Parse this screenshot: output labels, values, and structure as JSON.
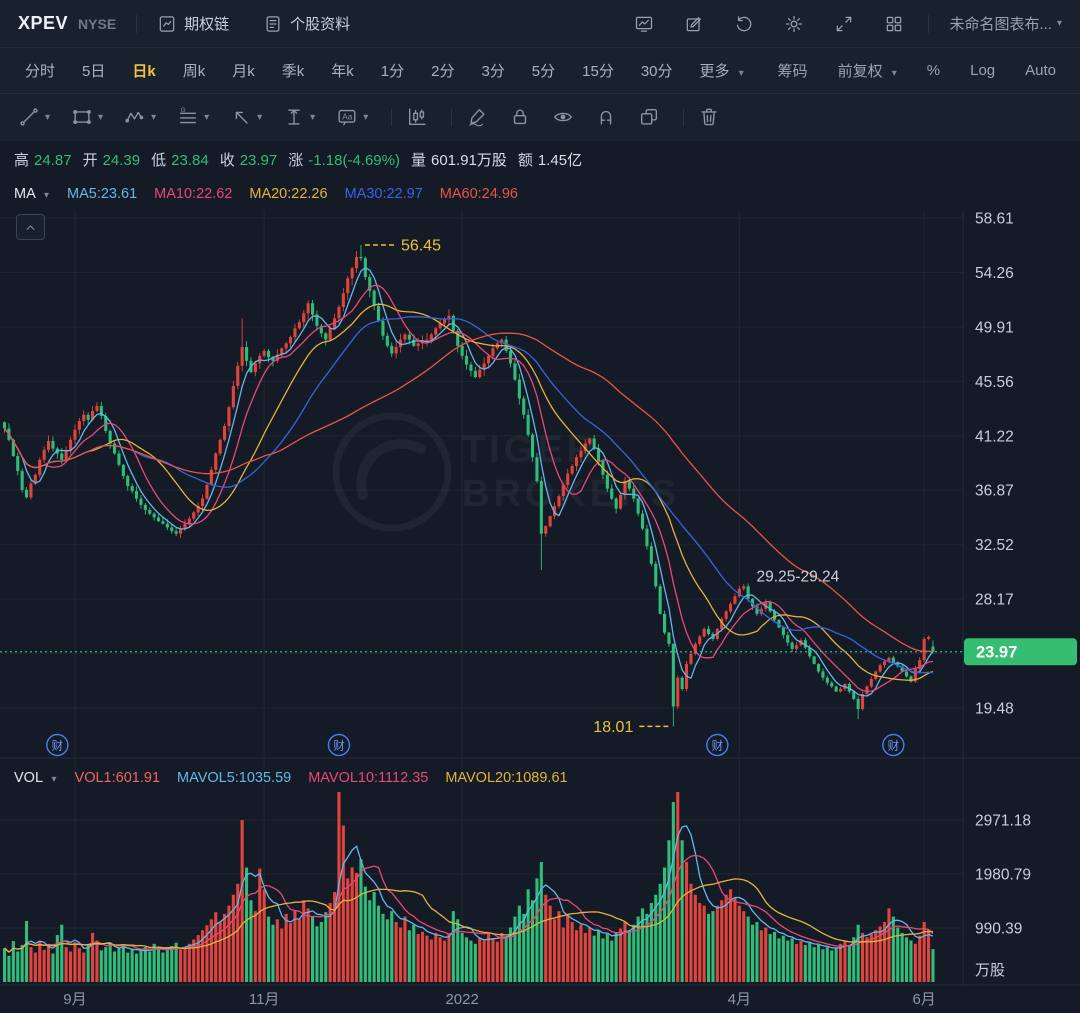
{
  "header": {
    "symbol": "XPEV",
    "exchange": "NYSE",
    "option_chain_label": "期权链",
    "stock_profile_label": "个股资料",
    "layout_name": "未命名图表布..."
  },
  "tabbar": {
    "timeframes": [
      "分时",
      "5日",
      "日k",
      "周k",
      "月k",
      "季k",
      "年k",
      "1分",
      "2分",
      "3分",
      "5分",
      "15分",
      "30分"
    ],
    "active_timeframe": "日k",
    "more_label": "更多",
    "right_controls": [
      {
        "label": "筹码",
        "caret": false
      },
      {
        "label": "前复权",
        "caret": true
      },
      {
        "label": "%",
        "caret": false
      },
      {
        "label": "Log",
        "caret": false
      },
      {
        "label": "Auto",
        "caret": false
      }
    ]
  },
  "icons": [
    "option-chain-icon",
    "document-icon",
    "monitor-chart-icon",
    "edit-icon",
    "undo-icon",
    "gear-icon",
    "expand-icon",
    "grid-layout-icon",
    "trend-line-icon",
    "rectangle-icon",
    "wave-icon",
    "gann-lines-icon",
    "arrow-icon",
    "measure-icon",
    "text-label-icon",
    "candle-chart-icon",
    "brush-icon",
    "lock-icon",
    "eye-icon",
    "magnet-icon",
    "overlap-squares-icon",
    "trash-icon",
    "chevron-up-icon"
  ],
  "stats": {
    "items": [
      {
        "label": "高",
        "value": "24.87",
        "cls": "green"
      },
      {
        "label": "开",
        "value": "24.39",
        "cls": "green"
      },
      {
        "label": "低",
        "value": "23.84",
        "cls": "green"
      },
      {
        "label": "收",
        "value": "23.97",
        "cls": "green"
      },
      {
        "label": "涨",
        "value": "-1.18(-4.69%)",
        "cls": "green"
      },
      {
        "label": "量",
        "value": "601.91万股",
        "cls": "white"
      },
      {
        "label": "额",
        "value": "1.45亿",
        "cls": "white"
      }
    ]
  },
  "ma_row": {
    "selector": "MA",
    "items": [
      {
        "label": "MA5:23.61",
        "color": "#62B8E8"
      },
      {
        "label": "MA10:22.62",
        "color": "#E84878"
      },
      {
        "label": "MA20:22.26",
        "color": "#E3B23C"
      },
      {
        "label": "MA30:22.97",
        "color": "#3564E0"
      },
      {
        "label": "MA60:24.96",
        "color": "#E85448"
      }
    ]
  },
  "vol_row": {
    "selector": "VOL",
    "items": [
      {
        "label": "VOL1:601.91",
        "color": "#F2655E"
      },
      {
        "label": "MAVOL5:1035.59",
        "color": "#62B8E8"
      },
      {
        "label": "MAVOL10:1112.35",
        "color": "#E84878"
      },
      {
        "label": "MAVOL20:1089.61",
        "color": "#E3B23C"
      }
    ]
  },
  "watermark": {
    "line1": "TIGER",
    "line2": "BROKERS"
  },
  "colors": {
    "up": "#E0443C",
    "down": "#2FBD7A",
    "badge": "#35BD72",
    "annotation_yellow": "#E8C23C",
    "axis_text": "#C6CEDA",
    "xaxis_text": "#8C96A6",
    "grid": "rgba(160,180,210,0.07)",
    "divider": "#242E3C",
    "earnings_blue": "#4A7DF0",
    "ma": [
      "#62B8E8",
      "#E84878",
      "#E3B23C",
      "#3564E0",
      "#E85448"
    ],
    "mavol": [
      "#62B8E8",
      "#E84878",
      "#E3B23C"
    ]
  },
  "chart_data": {
    "type": "candlestick+volume",
    "symbol": "XPEV",
    "timeframe": "日k",
    "legend_position": "top-left",
    "grid": true,
    "price_axis": {
      "ticks": [
        58.61,
        54.26,
        49.91,
        45.56,
        41.22,
        36.87,
        32.52,
        28.17,
        19.48
      ],
      "hidden_tick": 23.82,
      "current_price": 23.97
    },
    "volume_axis": {
      "ticks": [
        2971.18,
        1980.79,
        990.39
      ],
      "unit": "万股"
    },
    "x_ticks": [
      {
        "label": "9月",
        "i": 16
      },
      {
        "label": "11月",
        "i": 59
      },
      {
        "label": "2022",
        "i": 104
      },
      {
        "label": "4月",
        "i": 167
      },
      {
        "label": "6月",
        "i": 209
      }
    ],
    "annotations": {
      "high_marker": {
        "i": 81,
        "price": 56.45,
        "label": "56.45"
      },
      "low_marker": {
        "i": 152,
        "price": 18.01,
        "label": "18.01"
      },
      "gap_label": {
        "i": 170,
        "price": 30.0,
        "label": "29.25-29.24"
      }
    },
    "earnings_marker_indices": [
      12,
      76,
      162,
      202
    ],
    "indicators": {
      "MA5": 23.61,
      "MA10": 22.62,
      "MA20": 22.26,
      "MA30": 22.97,
      "MA60": 24.96,
      "VOL1": 601.91,
      "MAVOL5": 1035.59,
      "MAVOL10": 1112.35,
      "MAVOL20": 1089.61
    },
    "last_candle": {
      "open": 24.39,
      "high": 24.87,
      "low": 23.84,
      "close": 23.97,
      "change": "-1.18(-4.69%)",
      "volume_wan": 601.91,
      "amount": "1.45亿"
    },
    "ma_periods": [
      5,
      10,
      20,
      30,
      60
    ],
    "mavol_periods": [
      5,
      10,
      20
    ],
    "candles": {
      "first_open": 42.3,
      "closes": [
        41.8,
        40.9,
        39.6,
        38.4,
        36.9,
        36.3,
        37.4,
        38.1,
        39.3,
        40.1,
        40.8,
        40.2,
        39.8,
        39.3,
        40.0,
        40.9,
        41.7,
        42.4,
        42.9,
        42.5,
        43.2,
        43.6,
        42.8,
        41.6,
        40.6,
        39.8,
        38.9,
        38.0,
        37.2,
        36.8,
        36.2,
        35.7,
        35.3,
        35.0,
        34.7,
        34.4,
        34.2,
        33.9,
        33.6,
        33.4,
        33.8,
        34.2,
        34.6,
        35.1,
        35.6,
        36.2,
        37.3,
        38.5,
        39.8,
        40.9,
        42.0,
        43.5,
        45.2,
        46.8,
        48.3,
        47.2,
        46.3,
        47.0,
        47.6,
        48.0,
        47.5,
        47.2,
        47.7,
        48.2,
        48.6,
        49.1,
        49.8,
        50.3,
        51.0,
        51.8,
        50.9,
        50.0,
        49.4,
        48.9,
        49.8,
        50.6,
        51.5,
        52.6,
        53.8,
        54.6,
        55.5,
        55.4,
        53.9,
        52.8,
        51.6,
        50.4,
        49.2,
        48.4,
        47.8,
        48.3,
        48.9,
        49.3,
        48.9,
        48.4,
        48.6,
        48.8,
        48.9,
        49.3,
        49.8,
        50.2,
        50.5,
        50.8,
        49.6,
        48.4,
        47.6,
        46.9,
        46.4,
        45.9,
        46.5,
        47.0,
        47.6,
        48.2,
        48.6,
        48.9,
        48.0,
        47.0,
        45.7,
        44.2,
        42.9,
        41.3,
        39.5,
        37.6,
        33.4,
        34.0,
        34.8,
        35.6,
        36.4,
        37.3,
        38.2,
        38.8,
        39.5,
        40.0,
        40.6,
        41.0,
        40.2,
        39.2,
        38.1,
        37.0,
        36.2,
        35.4,
        36.5,
        37.6,
        37.0,
        36.2,
        35.0,
        33.8,
        32.4,
        31.0,
        29.2,
        27.0,
        25.5,
        24.6,
        19.6,
        21.9,
        21.0,
        23.0,
        23.8,
        24.6,
        25.2,
        25.8,
        25.4,
        25.0,
        25.8,
        26.6,
        27.2,
        27.8,
        28.4,
        29.0,
        29.2,
        28.2,
        27.6,
        27.0,
        27.4,
        27.9,
        27.2,
        26.5,
        25.9,
        25.3,
        24.7,
        24.2,
        24.5,
        24.9,
        24.3,
        23.6,
        23.0,
        22.4,
        21.9,
        21.5,
        21.2,
        20.8,
        21.0,
        21.4,
        20.8,
        20.2,
        19.4,
        20.6,
        21.2,
        21.8,
        22.4,
        22.9,
        23.2,
        23.5,
        23.1,
        22.8,
        22.4,
        22.0,
        21.6,
        22.6,
        23.3,
        25.0,
        25.15,
        23.97
      ],
      "overrides": {
        "54": {
          "h": 50.6
        },
        "81": {
          "h": 56.45
        },
        "122": {
          "l": 30.5
        },
        "152": {
          "l": 18.01
        },
        "194": {
          "l": 18.6
        },
        "211": {
          "o": 24.39,
          "h": 24.87,
          "l": 23.84
        }
      }
    },
    "volumes_wan": [
      620,
      480,
      750,
      560,
      680,
      1120,
      640,
      540,
      760,
      590,
      700,
      520,
      860,
      1050,
      640,
      560,
      730,
      620,
      540,
      680,
      900,
      760,
      580,
      640,
      720,
      560,
      620,
      680,
      540,
      600,
      520,
      580,
      640,
      560,
      700,
      620,
      540,
      580,
      660,
      720,
      600,
      640,
      700,
      780,
      860,
      950,
      1040,
      1150,
      1280,
      1100,
      1250,
      1400,
      1600,
      1800,
      2970,
      2100,
      1500,
      1300,
      2080,
      1700,
      1200,
      1050,
      1150,
      980,
      1250,
      1080,
      1320,
      1150,
      1500,
      1350,
      1200,
      1020,
      1100,
      1280,
      1450,
      1650,
      3580,
      2870,
      1900,
      2100,
      2000,
      2250,
      1750,
      1500,
      1650,
      1400,
      1250,
      1150,
      1300,
      1100,
      1000,
      1200,
      950,
      1050,
      880,
      920,
      850,
      780,
      900,
      820,
      760,
      880,
      1300,
      1150,
      900,
      820,
      760,
      700,
      820,
      760,
      880,
      800,
      740,
      900,
      820,
      1000,
      1200,
      1400,
      1250,
      1700,
      1500,
      1900,
      2200,
      1600,
      1400,
      1150,
      1300,
      1000,
      1250,
      1100,
      950,
      1050,
      900,
      1000,
      850,
      950,
      800,
      880,
      760,
      900,
      980,
      1100,
      950,
      1050,
      1200,
      1350,
      1250,
      1450,
      1600,
      1800,
      2100,
      2600,
      3300,
      3610,
      2600,
      2200,
      1800,
      1600,
      1450,
      1400,
      1250,
      1300,
      1400,
      1500,
      1600,
      1700,
      1550,
      1400,
      1300,
      1200,
      1050,
      1100,
      950,
      1000,
      880,
      920,
      800,
      850,
      760,
      800,
      700,
      750,
      680,
      720,
      640,
      680,
      600,
      640,
      580,
      620,
      700,
      760,
      680,
      820,
      1050,
      900,
      820,
      880,
      950,
      1020,
      1100,
      1350,
      1200,
      1000,
      900,
      820,
      760,
      700,
      850,
      1100,
      950,
      602
    ]
  }
}
